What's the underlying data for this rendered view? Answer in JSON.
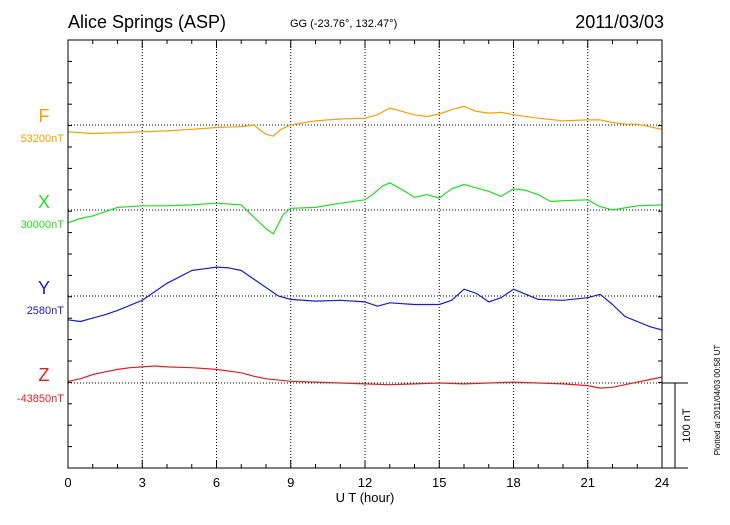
{
  "header": {
    "station": "Alice Springs (ASP)",
    "coords": "GG (-23.76°, 132.47°)",
    "date": "2011/03/03"
  },
  "footer": {
    "plotted": "Plotted at 2011/04/03 00:58 UT"
  },
  "scale_label": "100 nT",
  "chart_data": {
    "type": "line",
    "xlabel": "U T (hour)",
    "xlim": [
      0,
      24
    ],
    "xticks": [
      "0",
      "3",
      "6",
      "9",
      "12",
      "15",
      "18",
      "21",
      "24"
    ],
    "grid": true,
    "scale_bar_nT": 100,
    "series": [
      {
        "name": "F",
        "baseline_label": "53200nT",
        "baseline_nT": 53200,
        "color": "#f5a000",
        "x": [
          0,
          1,
          2,
          3,
          4,
          5,
          6,
          7,
          7.5,
          8,
          8.3,
          8.6,
          9,
          10,
          11,
          12,
          12.5,
          13,
          13.5,
          14,
          14.5,
          15,
          15.5,
          16,
          16.5,
          17,
          17.5,
          18,
          19,
          20,
          21,
          21.5,
          22,
          22.5,
          23,
          24
        ],
        "y": [
          53192,
          53190,
          53191,
          53192,
          53193,
          53195,
          53197,
          53198,
          53200,
          53189,
          53187,
          53195,
          53200,
          53205,
          53207,
          53208,
          53212,
          53220,
          53216,
          53212,
          53210,
          53213,
          53218,
          53222,
          53216,
          53214,
          53215,
          53212,
          53208,
          53205,
          53206,
          53206,
          53203,
          53201,
          53201,
          53195
        ]
      },
      {
        "name": "X",
        "baseline_label": "30000nT",
        "baseline_nT": 30000,
        "color": "#22dd22",
        "x": [
          0,
          0.5,
          1,
          1.5,
          2,
          3,
          4,
          5,
          6,
          7,
          7.5,
          8,
          8.3,
          8.7,
          9,
          10,
          11,
          12,
          12.3,
          12.7,
          13,
          13.5,
          14,
          14.5,
          15,
          15.5,
          16,
          16.5,
          17,
          17.5,
          18,
          18.5,
          19,
          19.5,
          20,
          21,
          21.5,
          22,
          23,
          24
        ],
        "y": [
          29985,
          29990,
          29993,
          29998,
          30003,
          30005,
          30005,
          30006,
          30008,
          30006,
          29992,
          29978,
          29972,
          29995,
          30002,
          30003,
          30008,
          30012,
          30018,
          30028,
          30032,
          30024,
          30015,
          30018,
          30014,
          30025,
          30030,
          30026,
          30022,
          30016,
          30025,
          30023,
          30018,
          30010,
          30011,
          30012,
          30004,
          30000,
          30005,
          30006
        ]
      },
      {
        "name": "Y",
        "baseline_label": "2580nT",
        "baseline_nT": 2580,
        "color": "#1a1ad0",
        "x": [
          0,
          0.5,
          1,
          1.5,
          2,
          3,
          4,
          5,
          5.5,
          6,
          6.5,
          7,
          7.5,
          8,
          8.5,
          9,
          10,
          11,
          12,
          12.5,
          13,
          14,
          15,
          15.5,
          16,
          16.5,
          17,
          17.5,
          18,
          18.5,
          19,
          20,
          21,
          21.5,
          22,
          22.5,
          23,
          23.5,
          24
        ],
        "y": [
          2552,
          2550,
          2554,
          2558,
          2563,
          2575,
          2595,
          2610,
          2612,
          2614,
          2613,
          2610,
          2600,
          2590,
          2580,
          2576,
          2574,
          2575,
          2573,
          2568,
          2572,
          2570,
          2570,
          2575,
          2588,
          2583,
          2573,
          2578,
          2588,
          2582,
          2576,
          2575,
          2578,
          2582,
          2570,
          2556,
          2550,
          2544,
          2540
        ]
      },
      {
        "name": "Z",
        "baseline_label": "-43850nT",
        "baseline_nT": -43850,
        "color": "#e02020",
        "x": [
          0,
          0.5,
          1,
          1.5,
          2,
          2.5,
          3,
          3.5,
          4,
          5,
          6,
          7,
          7.5,
          8,
          9,
          10,
          11,
          12,
          13,
          14,
          15,
          16,
          17,
          18,
          19,
          20,
          21,
          21.5,
          22,
          22.5,
          23,
          23.5,
          24
        ],
        "y": [
          -43848,
          -43845,
          -43840,
          -43837,
          -43834,
          -43832,
          -43831,
          -43830,
          -43831,
          -43832,
          -43834,
          -43838,
          -43842,
          -43845,
          -43848,
          -43849,
          -43850,
          -43851,
          -43852,
          -43851,
          -43850,
          -43851,
          -43850,
          -43849,
          -43850,
          -43851,
          -43853,
          -43856,
          -43855,
          -43852,
          -43849,
          -43846,
          -43843
        ]
      }
    ]
  }
}
